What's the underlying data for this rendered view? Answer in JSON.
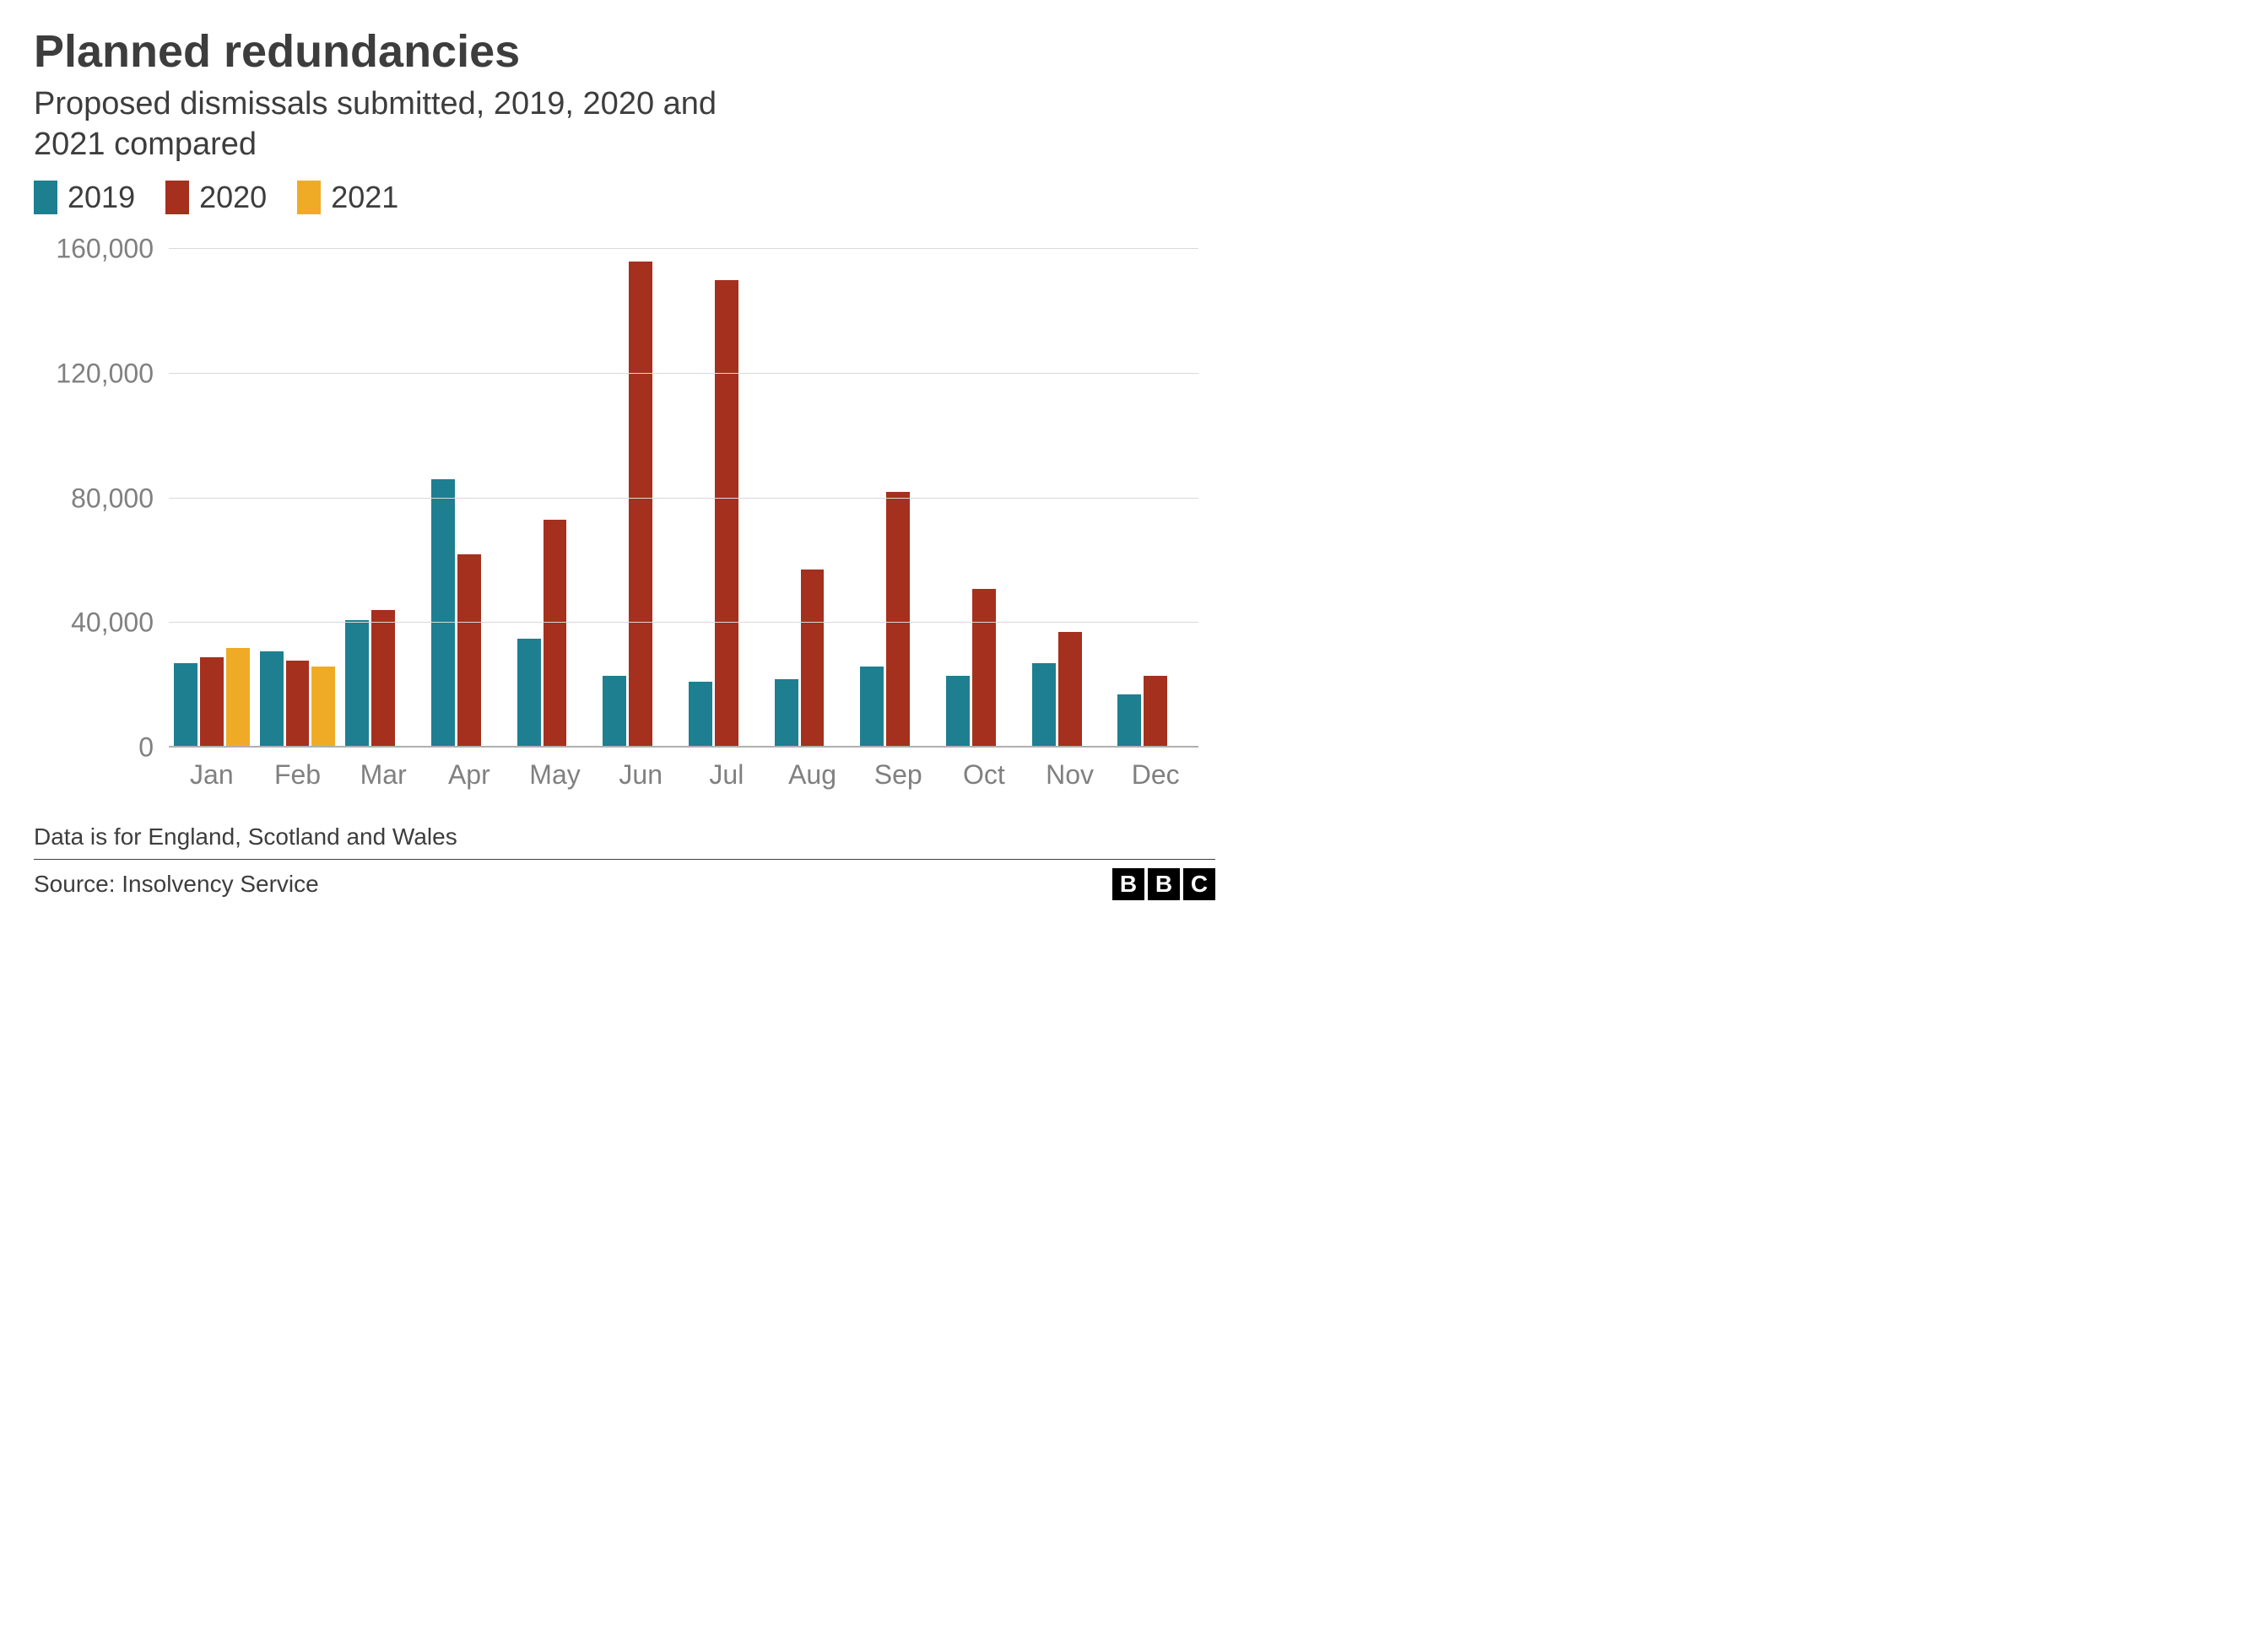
{
  "title": "Planned redundancies",
  "subtitle": "Proposed dismissals submitted, 2019, 2020 and 2021 compared",
  "chart": {
    "type": "bar",
    "background_color": "#ffffff",
    "grid_color": "#d9d9d9",
    "axis_text_color": "#808080",
    "title_color": "#3d3d3d",
    "title_fontsize": 54,
    "subtitle_fontsize": 38,
    "label_fontsize": 32,
    "ylim_max": 160000,
    "y_ticks": [
      0,
      40000,
      80000,
      120000,
      160000
    ],
    "y_tick_labels": [
      "0",
      "40,000",
      "80,000",
      "120,000",
      "160,000"
    ],
    "categories": [
      "Jan",
      "Feb",
      "Mar",
      "Apr",
      "May",
      "Jun",
      "Jul",
      "Aug",
      "Sep",
      "Oct",
      "Nov",
      "Dec"
    ],
    "series": [
      {
        "name": "2019",
        "color": "#1e7f91",
        "values": [
          27000,
          31000,
          41000,
          86000,
          35000,
          23000,
          21000,
          22000,
          26000,
          23000,
          27000,
          17000
        ]
      },
      {
        "name": "2020",
        "color": "#a5301e",
        "values": [
          29000,
          28000,
          44000,
          62000,
          73000,
          156000,
          150000,
          57000,
          82000,
          51000,
          37000,
          23000
        ]
      },
      {
        "name": "2021",
        "color": "#f0ab26",
        "values": [
          32000,
          26000,
          null,
          null,
          null,
          null,
          null,
          null,
          null,
          null,
          null,
          null
        ]
      }
    ]
  },
  "footnote": "Data is for England, Scotland and Wales",
  "source": "Source: Insolvency Service",
  "logo_letters": [
    "B",
    "B",
    "C"
  ]
}
